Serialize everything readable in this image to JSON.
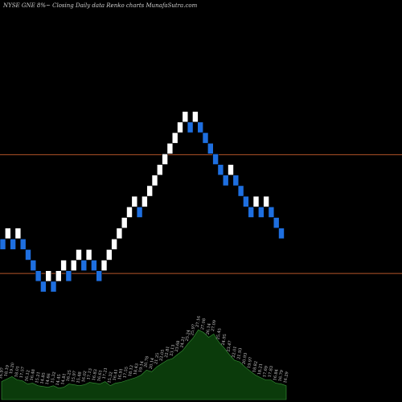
{
  "header": {
    "title": "NYSE GNE 8%~  Closing Daily data  Renko  charts MunafaSutra.com"
  },
  "chart_data": {
    "type": "renko",
    "title": "NYSE GNE 8%~  Closing Daily data  Renko  charts MunafaSutra.com",
    "colors": {
      "up_brick": "#ffffff",
      "down_brick": "#1e6fe0",
      "reference_line": "#b5552a",
      "volume_fill": "#0b3b0b",
      "volume_outline": "#3a9a3a"
    },
    "reference_lines": [
      {
        "name": "upper",
        "value": 26.66
      },
      {
        "name": "lower",
        "value": 21.06
      }
    ],
    "bricks": [
      {
        "dir": "down",
        "value": 22.44
      },
      {
        "dir": "up",
        "value": 22.95
      },
      {
        "dir": "down",
        "value": 22.44
      },
      {
        "dir": "up",
        "value": 22.95
      },
      {
        "dir": "down",
        "value": 22.44
      },
      {
        "dir": "down",
        "value": 21.94
      },
      {
        "dir": "down",
        "value": 21.44
      },
      {
        "dir": "down",
        "value": 20.94
      },
      {
        "dir": "down",
        "value": 20.44
      },
      {
        "dir": "up",
        "value": 20.94
      },
      {
        "dir": "down",
        "value": 20.44
      },
      {
        "dir": "up",
        "value": 20.94
      },
      {
        "dir": "up",
        "value": 21.44
      },
      {
        "dir": "down",
        "value": 20.94
      },
      {
        "dir": "up",
        "value": 21.44
      },
      {
        "dir": "up",
        "value": 21.94
      },
      {
        "dir": "down",
        "value": 21.44
      },
      {
        "dir": "up",
        "value": 21.94
      },
      {
        "dir": "down",
        "value": 21.44
      },
      {
        "dir": "down",
        "value": 20.94
      },
      {
        "dir": "up",
        "value": 21.44
      },
      {
        "dir": "up",
        "value": 21.94
      },
      {
        "dir": "up",
        "value": 22.44
      },
      {
        "dir": "up",
        "value": 22.95
      },
      {
        "dir": "up",
        "value": 23.45
      },
      {
        "dir": "up",
        "value": 23.95
      },
      {
        "dir": "up",
        "value": 24.45
      },
      {
        "dir": "down",
        "value": 23.95
      },
      {
        "dir": "up",
        "value": 24.45
      },
      {
        "dir": "up",
        "value": 24.95
      },
      {
        "dir": "up",
        "value": 25.45
      },
      {
        "dir": "up",
        "value": 25.95
      },
      {
        "dir": "up",
        "value": 26.45
      },
      {
        "dir": "up",
        "value": 26.95
      },
      {
        "dir": "up",
        "value": 27.45
      },
      {
        "dir": "up",
        "value": 27.95
      },
      {
        "dir": "up",
        "value": 28.45
      },
      {
        "dir": "down",
        "value": 27.95
      },
      {
        "dir": "up",
        "value": 28.45
      },
      {
        "dir": "down",
        "value": 27.95
      },
      {
        "dir": "down",
        "value": 27.45
      },
      {
        "dir": "down",
        "value": 26.95
      },
      {
        "dir": "down",
        "value": 26.45
      },
      {
        "dir": "down",
        "value": 25.95
      },
      {
        "dir": "down",
        "value": 25.45
      },
      {
        "dir": "up",
        "value": 25.95
      },
      {
        "dir": "down",
        "value": 25.45
      },
      {
        "dir": "down",
        "value": 24.95
      },
      {
        "dir": "down",
        "value": 24.45
      },
      {
        "dir": "down",
        "value": 23.95
      },
      {
        "dir": "up",
        "value": 24.45
      },
      {
        "dir": "down",
        "value": 23.95
      },
      {
        "dir": "up",
        "value": 24.45
      },
      {
        "dir": "down",
        "value": 23.95
      },
      {
        "dir": "down",
        "value": 23.45
      },
      {
        "dir": "down",
        "value": 22.95
      }
    ],
    "volume_labels": [
      "16.97",
      "18.19",
      "19.20",
      "18.01",
      "17.57",
      "16.12",
      "16.48",
      "15.21",
      "14.85",
      "14.66",
      "15.32",
      "14.45",
      "14.81",
      "16.25",
      "15.97",
      "15.48",
      "16.02",
      "17.13",
      "16.83",
      "16.61",
      "17.21",
      "15.32",
      "16.41",
      "16.91",
      "17.55",
      "18.12",
      "18.43",
      "19.14",
      "20.78",
      "20.14",
      "21.25",
      "22.05",
      "22.81",
      "23.13",
      "23.68",
      "24.21",
      "25.24",
      "25.97",
      "27.16",
      "27.08",
      "26.14",
      "27.09",
      "25.45",
      "24.95",
      "23.47",
      "22.01",
      "21.93",
      "20.93",
      "19.97",
      "18.82",
      "18.21",
      "17.69",
      "17.83",
      "16.84",
      "16.79",
      "16.29"
    ],
    "volume": [
      22,
      25,
      28,
      24,
      23,
      19,
      20,
      17,
      16,
      15,
      17,
      14,
      15,
      19,
      18,
      17,
      18,
      21,
      20,
      19,
      22,
      17,
      20,
      21,
      23,
      25,
      27,
      30,
      36,
      34,
      40,
      44,
      48,
      50,
      55,
      60,
      68,
      75,
      85,
      82,
      76,
      80,
      70,
      63,
      55,
      48,
      46,
      40,
      35,
      30,
      27,
      24,
      24,
      20,
      19,
      17
    ],
    "ylim": [
      15.0,
      33.5
    ],
    "volume_max": 100
  }
}
